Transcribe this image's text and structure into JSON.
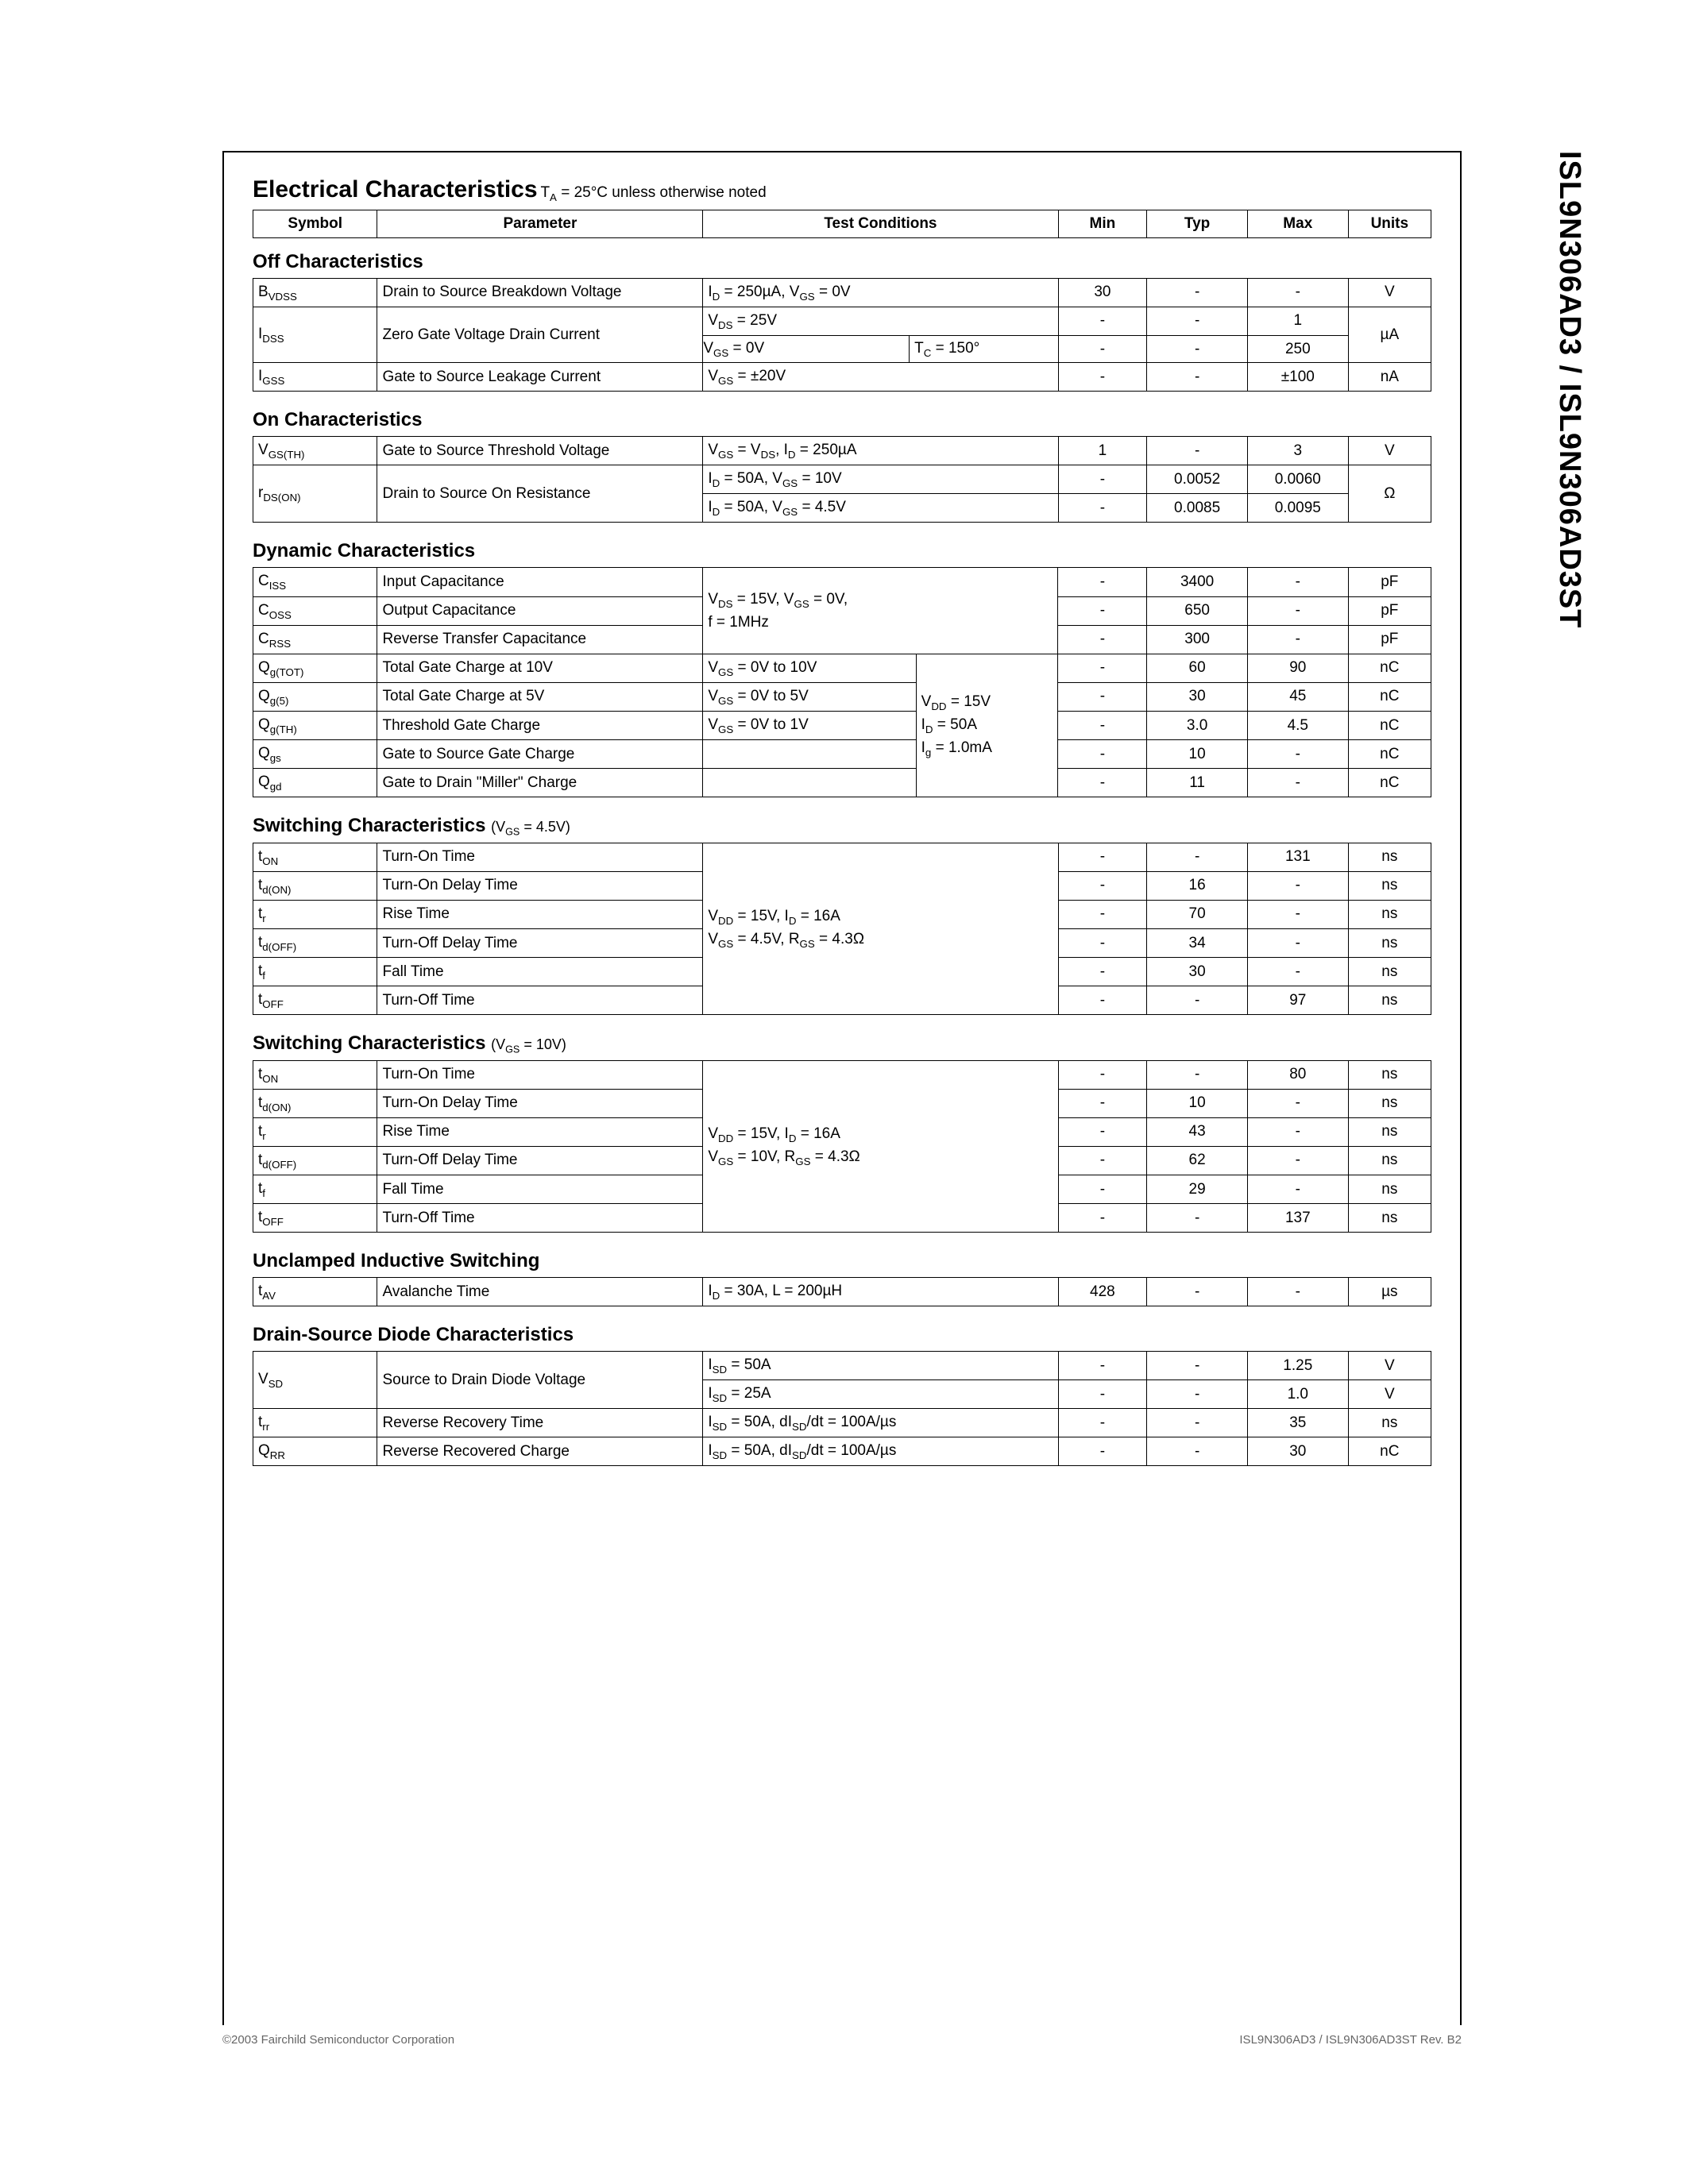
{
  "sidebar_text": "ISL9N306AD3 / ISL9N306AD3ST",
  "main_title": "Electrical Characteristics",
  "main_title_note_html": "T<sub>A</sub> = 25°C unless otherwise noted",
  "header_cols": [
    "Symbol",
    "Parameter",
    "Test Conditions",
    "Min",
    "Typ",
    "Max",
    "Units"
  ],
  "sec_off_title": "Off Characteristics",
  "off": [
    {
      "sym": "B<sub>VDSS</sub>",
      "param": "Drain to Source Breakdown Voltage",
      "cond": "I<sub>D</sub> = 250µA, V<sub>GS</sub> = 0V",
      "min": "30",
      "typ": "-",
      "max": "-",
      "unit": "V"
    },
    {
      "sym": "I<sub>DSS</sub>",
      "param": "Zero Gate Voltage Drain Current",
      "rows": [
        {
          "cond": "V<sub>DS</sub> = 25V",
          "min": "-",
          "typ": "-",
          "max": "1"
        },
        {
          "cond_l": "V<sub>GS</sub> = 0V",
          "cond_r": "T<sub>C</sub> = 150°",
          "min": "-",
          "typ": "-",
          "max": "250"
        }
      ],
      "unit": "µA"
    },
    {
      "sym": "I<sub>GSS</sub>",
      "param": "Gate to Source Leakage Current",
      "cond": "V<sub>GS</sub> = ±20V",
      "min": "-",
      "typ": "-",
      "max": "±100",
      "unit": "nA"
    }
  ],
  "sec_on_title": "On Characteristics",
  "on": [
    {
      "sym": "V<sub>GS(TH)</sub>",
      "param": "Gate to Source Threshold Voltage",
      "cond": "V<sub>GS</sub> = V<sub>DS</sub>, I<sub>D</sub> = 250µA",
      "min": "1",
      "typ": "-",
      "max": "3",
      "unit": "V"
    },
    {
      "sym": "r<sub>DS(ON)</sub>",
      "param": "Drain to Source On Resistance",
      "rows": [
        {
          "cond": "I<sub>D</sub> = 50A, V<sub>GS</sub> = 10V",
          "min": "-",
          "typ": "0.0052",
          "max": "0.0060"
        },
        {
          "cond": "I<sub>D</sub> = 50A, V<sub>GS</sub> = 4.5V",
          "min": "-",
          "typ": "0.0085",
          "max": "0.0095"
        }
      ],
      "unit": "Ω"
    }
  ],
  "sec_dyn_title": "Dynamic Characteristics",
  "dyn_cap_cond": "V<sub>DS</sub> = 15V, V<sub>GS</sub> = 0V,<br>f = 1MHz",
  "dyn_q_cond_right": "V<sub>DD</sub> = 15V<br>I<sub>D</sub> = 50A<br>I<sub>g</sub> = 1.0mA",
  "dyn": [
    {
      "sym": "C<sub>ISS</sub>",
      "param": "Input Capacitance",
      "min": "-",
      "typ": "3400",
      "max": "-",
      "unit": "pF"
    },
    {
      "sym": "C<sub>OSS</sub>",
      "param": "Output Capacitance",
      "min": "-",
      "typ": "650",
      "max": "-",
      "unit": "pF"
    },
    {
      "sym": "C<sub>RSS</sub>",
      "param": "Reverse Transfer Capacitance",
      "min": "-",
      "typ": "300",
      "max": "-",
      "unit": "pF"
    },
    {
      "sym": "Q<sub>g(TOT)</sub>",
      "param": "Total Gate Charge at 10V",
      "cond": "V<sub>GS</sub> = 0V to 10V",
      "min": "-",
      "typ": "60",
      "max": "90",
      "unit": "nC"
    },
    {
      "sym": "Q<sub>g(5)</sub>",
      "param": "Total Gate Charge at 5V",
      "cond": "V<sub>GS</sub> = 0V to  5V",
      "min": "-",
      "typ": "30",
      "max": "45",
      "unit": "nC"
    },
    {
      "sym": "Q<sub>g(TH)</sub>",
      "param": "Threshold Gate Charge",
      "cond": "V<sub>GS</sub> = 0V to 1V",
      "min": "-",
      "typ": "3.0",
      "max": "4.5",
      "unit": "nC"
    },
    {
      "sym": "Q<sub>gs</sub>",
      "param": "Gate to Source Gate Charge",
      "cond": "",
      "min": "-",
      "typ": "10",
      "max": "-",
      "unit": "nC"
    },
    {
      "sym": "Q<sub>gd</sub>",
      "param": "Gate to Drain \"Miller\" Charge",
      "cond": "",
      "min": "-",
      "typ": "11",
      "max": "-",
      "unit": "nC"
    }
  ],
  "sec_sw45_title": "Switching Characteristics",
  "sec_sw45_sub": "(V<sub>GS</sub> = 4.5V)",
  "sw45_cond": "V<sub>DD</sub> = 15V, I<sub>D</sub> = 16A<br>V<sub>GS</sub> = 4.5V, R<sub>GS</sub> = 4.3Ω",
  "sw45": [
    {
      "sym": "t<sub>ON</sub>",
      "param": "Turn-On Time",
      "min": "-",
      "typ": "-",
      "max": "131",
      "unit": "ns"
    },
    {
      "sym": "t<sub>d(ON)</sub>",
      "param": "Turn-On Delay Time",
      "min": "-",
      "typ": "16",
      "max": "-",
      "unit": "ns"
    },
    {
      "sym": "t<sub>r</sub>",
      "param": "Rise Time",
      "min": "-",
      "typ": "70",
      "max": "-",
      "unit": "ns"
    },
    {
      "sym": "t<sub>d(OFF)</sub>",
      "param": "Turn-Off Delay Time",
      "min": "-",
      "typ": "34",
      "max": "-",
      "unit": "ns"
    },
    {
      "sym": "t<sub>f</sub>",
      "param": "Fall Time",
      "min": "-",
      "typ": "30",
      "max": "-",
      "unit": "ns"
    },
    {
      "sym": "t<sub>OFF</sub>",
      "param": "Turn-Off Time",
      "min": "-",
      "typ": "-",
      "max": "97",
      "unit": "ns"
    }
  ],
  "sec_sw10_title": "Switching Characteristics",
  "sec_sw10_sub": "(V<sub>GS</sub> = 10V)",
  "sw10_cond": "V<sub>DD</sub> = 15V, I<sub>D</sub> = 16A<br>V<sub>GS</sub> = 10V, R<sub>GS</sub> = 4.3Ω",
  "sw10": [
    {
      "sym": "t<sub>ON</sub>",
      "param": "Turn-On Time",
      "min": "-",
      "typ": "-",
      "max": "80",
      "unit": "ns"
    },
    {
      "sym": "t<sub>d(ON)</sub>",
      "param": "Turn-On Delay Time",
      "min": "-",
      "typ": "10",
      "max": "-",
      "unit": "ns"
    },
    {
      "sym": "t<sub>r</sub>",
      "param": "Rise Time",
      "min": "-",
      "typ": "43",
      "max": "-",
      "unit": "ns"
    },
    {
      "sym": "t<sub>d(OFF)</sub>",
      "param": "Turn-Off Delay Time",
      "min": "-",
      "typ": "62",
      "max": "-",
      "unit": "ns"
    },
    {
      "sym": "t<sub>f</sub>",
      "param": "Fall Time",
      "min": "-",
      "typ": "29",
      "max": "-",
      "unit": "ns"
    },
    {
      "sym": "t<sub>OFF</sub>",
      "param": "Turn-Off Time",
      "min": "-",
      "typ": "-",
      "max": "137",
      "unit": "ns"
    }
  ],
  "sec_uis_title": "Unclamped Inductive Switching",
  "uis": {
    "sym": "t<sub>AV</sub>",
    "param": "Avalanche Time",
    "cond": "I<sub>D</sub> = 30A, L = 200µH",
    "min": "428",
    "typ": "-",
    "max": "-",
    "unit": "µs"
  },
  "sec_diode_title": "Drain-Source Diode Characteristics",
  "diode": [
    {
      "sym": "V<sub>SD</sub>",
      "param": "Source to Drain Diode Voltage",
      "rows": [
        {
          "cond": "I<sub>SD</sub> = 50A",
          "min": "-",
          "typ": "-",
          "max": "1.25",
          "unit": "V"
        },
        {
          "cond": "I<sub>SD</sub> = 25A",
          "min": "-",
          "typ": "-",
          "max": "1.0",
          "unit": "V"
        }
      ]
    },
    {
      "sym": "t<sub>rr</sub>",
      "param": "Reverse Recovery Time",
      "cond": "I<sub>SD</sub> = 50A, dI<sub>SD</sub>/dt = 100A/µs",
      "min": "-",
      "typ": "-",
      "max": "35",
      "unit": "ns"
    },
    {
      "sym": "Q<sub>RR</sub>",
      "param": "Reverse Recovered Charge",
      "cond": "I<sub>SD</sub> = 50A, dI<sub>SD</sub>/dt = 100A/µs",
      "min": "-",
      "typ": "-",
      "max": "30",
      "unit": "nC"
    }
  ],
  "footer_left": "©2003 Fairchild Semiconductor Corporation",
  "footer_right": "ISL9N306AD3 / ISL9N306AD3ST Rev. B2"
}
